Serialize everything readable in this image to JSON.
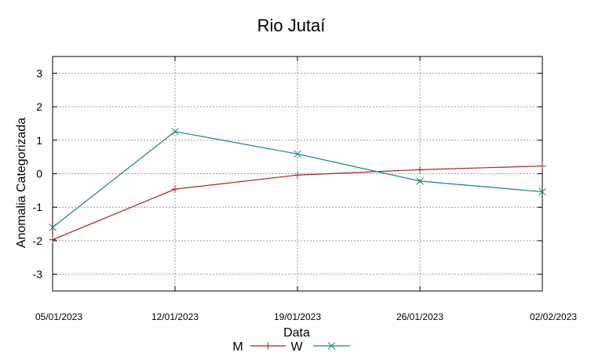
{
  "chart_data": {
    "type": "line",
    "title": "Rio Jutaí",
    "xlabel": "Data",
    "ylabel": "Anomalia Categorizada",
    "categories": [
      "05/01/2023",
      "12/01/2023",
      "19/01/2023",
      "26/01/2023",
      "02/02/2023"
    ],
    "ylim": [
      -3.5,
      3.5
    ],
    "yticks": [
      -3,
      -2,
      -1,
      0,
      1,
      2,
      3
    ],
    "grid": true,
    "legend_position": "bottom-center",
    "series": [
      {
        "name": "M",
        "color": "#a0262a",
        "marker": "plus",
        "values": [
          -1.97,
          -0.46,
          -0.04,
          0.12,
          0.23
        ]
      },
      {
        "name": "W",
        "color": "#1f7f80",
        "marker": "cross",
        "values": [
          -1.6,
          1.26,
          0.59,
          -0.22,
          -0.54
        ]
      }
    ]
  }
}
